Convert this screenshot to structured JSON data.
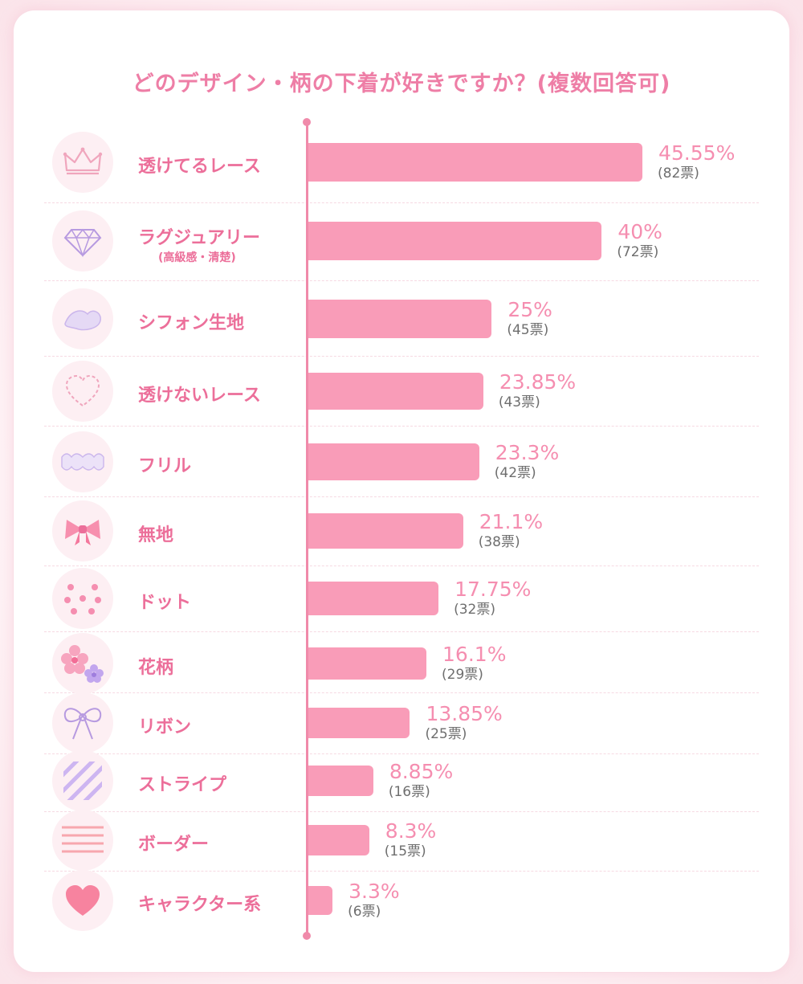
{
  "colors": {
    "accent": "#ee7ea6",
    "bar": "#f99cb8",
    "axis": "#f08aaa",
    "percent": "#f58eb0",
    "votes": "#6e6e6e",
    "icon_bg": "#fdeff3"
  },
  "chart_data": {
    "type": "bar",
    "orientation": "horizontal",
    "title": "どのデザイン・柄の下着が好きですか？(複数回答可)",
    "xlabel": "",
    "ylabel": "",
    "xlim": [
      0,
      100
    ],
    "grid": false,
    "legend": "none",
    "categories": [
      {
        "label": "透けてるレース",
        "sublabel": "",
        "icon": "crown-icon",
        "percent": 45.55,
        "percent_text": "45.55%",
        "votes_text": "(82票)"
      },
      {
        "label": "ラグジュアリー",
        "sublabel": "(高級感・清楚)",
        "icon": "diamond-icon",
        "percent": 40,
        "percent_text": "40%",
        "votes_text": "(72票)"
      },
      {
        "label": "シフォン生地",
        "sublabel": "",
        "icon": "chiffon-icon",
        "percent": 25,
        "percent_text": "25%",
        "votes_text": "(45票)"
      },
      {
        "label": "透けないレース",
        "sublabel": "",
        "icon": "heart-outline-icon",
        "percent": 23.85,
        "percent_text": "23.85%",
        "votes_text": "(43票)"
      },
      {
        "label": "フリル",
        "sublabel": "",
        "icon": "frill-icon",
        "percent": 23.3,
        "percent_text": "23.3%",
        "votes_text": "(42票)"
      },
      {
        "label": "無地",
        "sublabel": "",
        "icon": "bow-icon",
        "percent": 21.1,
        "percent_text": "21.1%",
        "votes_text": "(38票)"
      },
      {
        "label": "ドット",
        "sublabel": "",
        "icon": "dots-icon",
        "percent": 17.75,
        "percent_text": "17.75%",
        "votes_text": "(32票)"
      },
      {
        "label": "花柄",
        "sublabel": "",
        "icon": "flower-icon",
        "percent": 16.1,
        "percent_text": "16.1%",
        "votes_text": "(29票)"
      },
      {
        "label": "リボン",
        "sublabel": "",
        "icon": "ribbon-icon",
        "percent": 13.85,
        "percent_text": "13.85%",
        "votes_text": "(25票)"
      },
      {
        "label": "ストライプ",
        "sublabel": "",
        "icon": "stripe-icon",
        "percent": 8.85,
        "percent_text": "8.85%",
        "votes_text": "(16票)"
      },
      {
        "label": "ボーダー",
        "sublabel": "",
        "icon": "border-lines-icon",
        "percent": 8.3,
        "percent_text": "8.3%",
        "votes_text": "(15票)"
      },
      {
        "label": "キャラクター系",
        "sublabel": "",
        "icon": "heart-filled-icon",
        "percent": 3.3,
        "percent_text": "3.3%",
        "votes_text": "(6票)"
      }
    ]
  }
}
